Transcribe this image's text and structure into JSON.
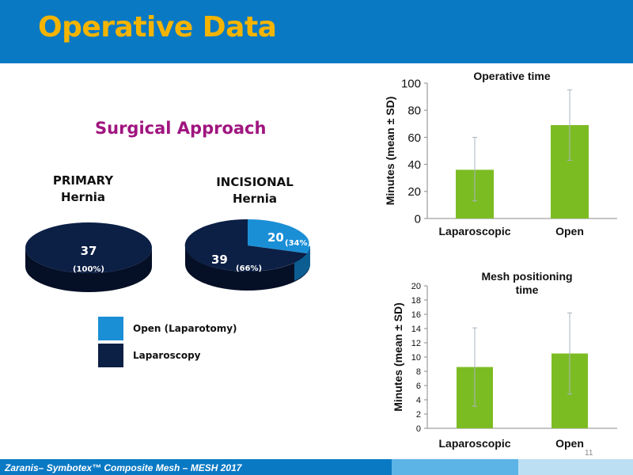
{
  "slide": {
    "title": "Operative Data",
    "page_number": "11",
    "footer": "Zaranis– Symbotex™ Composite Mesh – MESH 2017",
    "colors": {
      "header": "#0a79c4",
      "title": "#f5b400",
      "open": "#1b8fd6",
      "laparoscopy": "#0c1f45",
      "bar": "#7cbc23"
    }
  },
  "surgical_approach": {
    "title": "Surgical Approach",
    "primary": {
      "label_line1": "PRIMARY",
      "label_line2": "Hernia",
      "lap_value": "37",
      "lap_pct": "(100%)"
    },
    "incisional": {
      "label_line1": "INCISIONAL",
      "label_line2": "Hernia",
      "lap_value": "39",
      "lap_pct": "(66%)",
      "open_value": "20",
      "open_pct": "(34%)"
    },
    "legend": [
      {
        "label": "Open (Laparotomy)",
        "color": "#1b8fd6"
      },
      {
        "label": "Laparoscopy",
        "color": "#0c1f45"
      }
    ]
  },
  "chart_data": [
    {
      "type": "pie",
      "title": "PRIMARY Hernia",
      "categories": [
        "Open (Laparotomy)",
        "Laparoscopy"
      ],
      "values": [
        0,
        37
      ],
      "percent_labels": [
        "",
        "(100%)"
      ]
    },
    {
      "type": "pie",
      "title": "INCISIONAL Hernia",
      "categories": [
        "Open (Laparotomy)",
        "Laparoscopy"
      ],
      "values": [
        20,
        39
      ],
      "percent_labels": [
        "(34%)",
        "(66%)"
      ]
    },
    {
      "type": "bar",
      "title": "Operative time",
      "ylabel": "Minutes (mean ± SD)",
      "categories": [
        "Laparoscopic",
        "Open"
      ],
      "values": [
        36,
        69
      ],
      "error_low": [
        13,
        43
      ],
      "error_high": [
        60,
        95
      ],
      "ylim": [
        0,
        100
      ],
      "yticks": [
        "0",
        "20",
        "40",
        "60",
        "80",
        "100"
      ]
    },
    {
      "type": "bar",
      "title": "Mesh positioning time",
      "title_lines": [
        "Mesh positioning",
        "time"
      ],
      "ylabel": "Minutes (mean ± SD)",
      "categories": [
        "Laparoscopic",
        "Open"
      ],
      "values": [
        8.6,
        10.5
      ],
      "error_low": [
        3.1,
        4.8
      ],
      "error_high": [
        14.1,
        16.2
      ],
      "ylim": [
        0,
        20
      ],
      "yticks": [
        "0",
        "2",
        "4",
        "6",
        "8",
        "10",
        "12",
        "14",
        "16",
        "18",
        "20"
      ]
    }
  ]
}
